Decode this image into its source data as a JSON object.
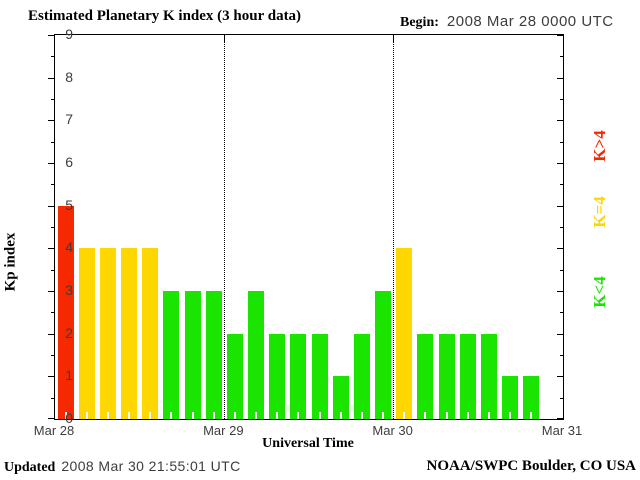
{
  "header": {
    "title": "Estimated Planetary K index (3 hour data)",
    "begin_label": "Begin:",
    "begin_value": "2008 Mar 28 0000 UTC"
  },
  "footer": {
    "updated_label": "Updated",
    "updated_value": "2008 Mar 30 21:55:01 UTC",
    "source": "NOAA/SWPC Boulder, CO USA"
  },
  "legend": [
    {
      "label": "K>4",
      "color": "#F52800",
      "meaning": "high"
    },
    {
      "label": "K=4",
      "color": "#FFD700",
      "meaning": "medium"
    },
    {
      "label": "K<4",
      "color": "#1BE400",
      "meaning": "low"
    }
  ],
  "chart_data": {
    "type": "bar",
    "title": "Estimated Planetary K index (3 hour data)",
    "xlabel": "Universal Time",
    "ylabel": "Kp index",
    "ylim": [
      0,
      9
    ],
    "yticks": [
      0,
      1,
      2,
      3,
      4,
      5,
      6,
      7,
      8,
      9
    ],
    "x_day_labels": [
      "Mar 28",
      "Mar 29",
      "Mar 30",
      "Mar 31"
    ],
    "bin_hours": 3,
    "slots_per_day": 8,
    "total_slots": 24,
    "values": [
      5,
      4,
      4,
      4,
      4,
      3,
      3,
      3,
      2,
      3,
      2,
      2,
      2,
      1,
      2,
      3,
      4,
      2,
      2,
      2,
      2,
      1,
      1
    ],
    "per_day_values": {
      "Mar 28": [
        5,
        4,
        4,
        4,
        4,
        3,
        3,
        3
      ],
      "Mar 29": [
        2,
        3,
        2,
        2,
        2,
        1,
        2,
        3
      ],
      "Mar 30": [
        4,
        2,
        2,
        2,
        2,
        1,
        1
      ]
    },
    "colors": {
      "high": "#F52800",
      "medium": "#FFD700",
      "low": "#1BE400"
    },
    "color_rule": "value > 4 = red (high), value = 4 = yellow (medium), value < 4 = green (low)",
    "day_boundary_slots": [
      8,
      16
    ],
    "grid": "dotted vertical lines at day boundaries, no horizontal gridlines",
    "legend_position": "right, rotated 90deg"
  }
}
